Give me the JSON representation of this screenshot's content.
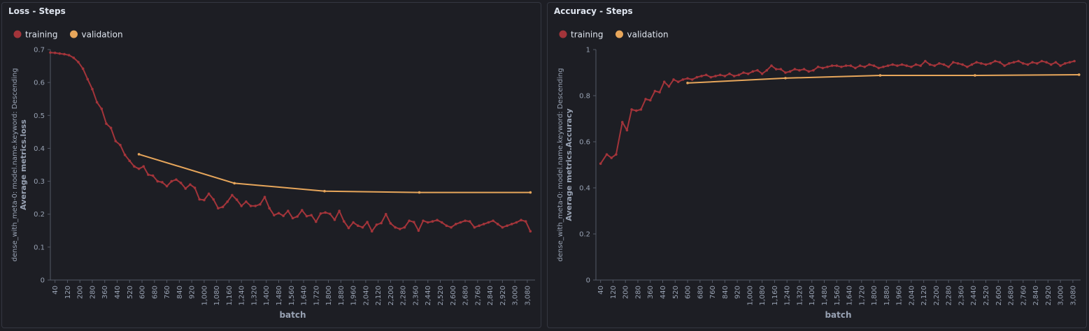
{
  "panels": [
    {
      "title": "Loss - Steps",
      "chart_data": {
        "type": "line",
        "xlabel": "batch",
        "ylabel_meta": "dense_with_meta-0: model.name.keyword: Descending",
        "ylabel": "Average metrics.loss",
        "ylim": [
          0,
          0.7
        ],
        "xlim": [
          10,
          3130
        ],
        "yticks": [
          "0",
          "0.1",
          "0.2",
          "0.3",
          "0.4",
          "0.5",
          "0.6",
          "0.7"
        ],
        "ytick_values": [
          0,
          0.1,
          0.2,
          0.3,
          0.4,
          0.5,
          0.6,
          0.7
        ],
        "xticks": [
          "40",
          "120",
          "200",
          "280",
          "360",
          "440",
          "520",
          "600",
          "680",
          "760",
          "840",
          "920",
          "1,000",
          "1,080",
          "1,160",
          "1,240",
          "1,320",
          "1,400",
          "1,480",
          "1,560",
          "1,640",
          "1,720",
          "1,800",
          "1,880",
          "1,960",
          "2,040",
          "2,120",
          "2,200",
          "2,280",
          "2,360",
          "2,440",
          "2,520",
          "2,600",
          "2,680",
          "2,760",
          "2,840",
          "2,920",
          "3,000",
          "3,080"
        ],
        "xtick_values": [
          40,
          120,
          200,
          280,
          360,
          440,
          520,
          600,
          680,
          760,
          840,
          920,
          1000,
          1080,
          1160,
          1240,
          1320,
          1400,
          1480,
          1560,
          1640,
          1720,
          1800,
          1880,
          1960,
          2040,
          2120,
          2200,
          2280,
          2360,
          2440,
          2520,
          2600,
          2680,
          2760,
          2840,
          2920,
          3000,
          3080
        ],
        "legend": [
          "training",
          "validation"
        ],
        "legend_position": "top-left",
        "grid": false,
        "colors": {
          "training": "#a3343a",
          "validation": "#e7a65b"
        },
        "series": [
          {
            "name": "training",
            "x": [
              10,
              40,
              70,
              100,
              130,
              160,
              190,
              220,
              250,
              280,
              310,
              340,
              370,
              400,
              430,
              460,
              490,
              520,
              550,
              580,
              610,
              640,
              670,
              700,
              730,
              760,
              790,
              820,
              850,
              880,
              910,
              940,
              970,
              1000,
              1030,
              1060,
              1090,
              1120,
              1150,
              1180,
              1210,
              1240,
              1270,
              1300,
              1330,
              1360,
              1390,
              1420,
              1450,
              1480,
              1510,
              1540,
              1570,
              1600,
              1630,
              1660,
              1690,
              1720,
              1750,
              1780,
              1810,
              1840,
              1870,
              1900,
              1930,
              1960,
              1990,
              2020,
              2050,
              2080,
              2110,
              2140,
              2170,
              2200,
              2230,
              2260,
              2290,
              2320,
              2350,
              2380,
              2410,
              2440,
              2470,
              2500,
              2530,
              2560,
              2590,
              2620,
              2650,
              2680,
              2710,
              2740,
              2770,
              2800,
              2830,
              2860,
              2890,
              2920,
              2950,
              2980,
              3010,
              3040,
              3070,
              3100
            ],
            "values": [
              0.691,
              0.69,
              0.688,
              0.686,
              0.683,
              0.675,
              0.662,
              0.642,
              0.61,
              0.58,
              0.54,
              0.52,
              0.475,
              0.462,
              0.422,
              0.41,
              0.38,
              0.362,
              0.345,
              0.338,
              0.345,
              0.32,
              0.317,
              0.3,
              0.297,
              0.285,
              0.3,
              0.305,
              0.295,
              0.278,
              0.29,
              0.28,
              0.245,
              0.243,
              0.262,
              0.245,
              0.218,
              0.222,
              0.238,
              0.258,
              0.244,
              0.225,
              0.238,
              0.225,
              0.225,
              0.23,
              0.252,
              0.218,
              0.197,
              0.203,
              0.195,
              0.21,
              0.188,
              0.193,
              0.212,
              0.194,
              0.197,
              0.177,
              0.202,
              0.205,
              0.201,
              0.183,
              0.21,
              0.178,
              0.158,
              0.175,
              0.165,
              0.16,
              0.176,
              0.148,
              0.168,
              0.173,
              0.2,
              0.172,
              0.16,
              0.155,
              0.16,
              0.18,
              0.176,
              0.15,
              0.18,
              0.175,
              0.178,
              0.182,
              0.175,
              0.165,
              0.16,
              0.17,
              0.175,
              0.18,
              0.178,
              0.16,
              0.165,
              0.17,
              0.175,
              0.18,
              0.17,
              0.16,
              0.165,
              0.17,
              0.175,
              0.182,
              0.178,
              0.148
            ]
          },
          {
            "name": "validation",
            "x": [
              580,
              1195,
              1775,
              2385,
              3100
            ],
            "values": [
              0.382,
              0.294,
              0.27,
              0.266,
              0.266
            ]
          }
        ]
      }
    },
    {
      "title": "Accuracy - Steps",
      "chart_data": {
        "type": "line",
        "xlabel": "batch",
        "ylabel_meta": "dense_with_meta-0: model.name.keyword: Descending",
        "ylabel": "Average metrics.Accuracy",
        "ylim": [
          0,
          1
        ],
        "xlim": [
          10,
          3130
        ],
        "yticks": [
          "0",
          "0.2",
          "0.4",
          "0.6",
          "0.8",
          "1"
        ],
        "ytick_values": [
          0,
          0.2,
          0.4,
          0.6,
          0.8,
          1
        ],
        "xticks": [
          "40",
          "120",
          "200",
          "280",
          "360",
          "440",
          "520",
          "600",
          "680",
          "760",
          "840",
          "920",
          "1,000",
          "1,080",
          "1,160",
          "1,240",
          "1,320",
          "1,400",
          "1,480",
          "1,560",
          "1,640",
          "1,720",
          "1,800",
          "1,880",
          "1,960",
          "2,040",
          "2,120",
          "2,200",
          "2,280",
          "2,360",
          "2,440",
          "2,520",
          "2,600",
          "2,680",
          "2,760",
          "2,840",
          "2,920",
          "3,000",
          "3,080"
        ],
        "xtick_values": [
          40,
          120,
          200,
          280,
          360,
          440,
          520,
          600,
          680,
          760,
          840,
          920,
          1000,
          1080,
          1160,
          1240,
          1320,
          1400,
          1480,
          1560,
          1640,
          1720,
          1800,
          1880,
          1960,
          2040,
          2120,
          2200,
          2280,
          2360,
          2440,
          2520,
          2600,
          2680,
          2760,
          2840,
          2920,
          3000,
          3080
        ],
        "legend": [
          "training",
          "validation"
        ],
        "legend_position": "top-left",
        "grid": false,
        "colors": {
          "training": "#a3343a",
          "validation": "#e7a65b"
        },
        "series": [
          {
            "name": "training",
            "x": [
              40,
              80,
              110,
              140,
              180,
              210,
              240,
              270,
              300,
              330,
              360,
              390,
              420,
              450,
              480,
              510,
              540,
              570,
              600,
              630,
              660,
              690,
              720,
              750,
              780,
              810,
              840,
              870,
              900,
              930,
              960,
              990,
              1020,
              1050,
              1080,
              1110,
              1140,
              1170,
              1200,
              1230,
              1260,
              1290,
              1320,
              1350,
              1380,
              1410,
              1440,
              1470,
              1500,
              1530,
              1560,
              1590,
              1620,
              1650,
              1680,
              1710,
              1740,
              1770,
              1800,
              1830,
              1860,
              1890,
              1920,
              1950,
              1980,
              2010,
              2040,
              2070,
              2100,
              2130,
              2160,
              2190,
              2220,
              2250,
              2280,
              2310,
              2340,
              2370,
              2400,
              2430,
              2460,
              2490,
              2520,
              2550,
              2580,
              2610,
              2640,
              2670,
              2700,
              2730,
              2760,
              2790,
              2820,
              2850,
              2880,
              2910,
              2940,
              2970,
              3000,
              3030,
              3060,
              3090
            ],
            "values": [
              0.505,
              0.545,
              0.53,
              0.545,
              0.685,
              0.65,
              0.74,
              0.735,
              0.74,
              0.785,
              0.78,
              0.82,
              0.815,
              0.86,
              0.84,
              0.87,
              0.86,
              0.87,
              0.875,
              0.87,
              0.88,
              0.885,
              0.89,
              0.88,
              0.885,
              0.89,
              0.885,
              0.895,
              0.885,
              0.89,
              0.9,
              0.895,
              0.905,
              0.91,
              0.895,
              0.91,
              0.93,
              0.915,
              0.915,
              0.9,
              0.905,
              0.915,
              0.91,
              0.915,
              0.905,
              0.91,
              0.925,
              0.92,
              0.925,
              0.93,
              0.93,
              0.925,
              0.93,
              0.93,
              0.92,
              0.93,
              0.925,
              0.935,
              0.93,
              0.92,
              0.925,
              0.93,
              0.935,
              0.93,
              0.935,
              0.93,
              0.925,
              0.935,
              0.93,
              0.95,
              0.935,
              0.93,
              0.94,
              0.935,
              0.925,
              0.945,
              0.94,
              0.935,
              0.925,
              0.935,
              0.945,
              0.94,
              0.935,
              0.94,
              0.95,
              0.945,
              0.93,
              0.94,
              0.945,
              0.95,
              0.94,
              0.935,
              0.945,
              0.94,
              0.95,
              0.945,
              0.935,
              0.945,
              0.93,
              0.94,
              0.945,
              0.95
            ]
          },
          {
            "name": "validation",
            "x": [
              600,
              1230,
              1840,
              2450,
              3120
            ],
            "values": [
              0.855,
              0.876,
              0.888,
              0.888,
              0.891
            ]
          }
        ]
      }
    }
  ]
}
